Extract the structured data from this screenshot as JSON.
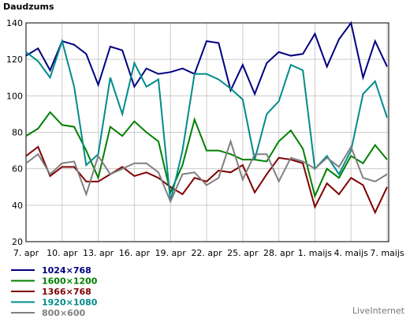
{
  "chart_data": {
    "type": "line",
    "title": "Daudzums",
    "categories": [
      "7. apr",
      null,
      null,
      "10. apr",
      null,
      null,
      "13. apr",
      null,
      null,
      "16. apr",
      null,
      null,
      "19. apr",
      null,
      null,
      "22. apr",
      null,
      null,
      "25. apr",
      null,
      null,
      "28. apr",
      null,
      null,
      "1. maijs",
      null,
      null,
      "4. maijs",
      null,
      null,
      "7. maijs"
    ],
    "ylim": [
      20,
      140
    ],
    "yticks": [
      20,
      40,
      60,
      80,
      100,
      120,
      140
    ],
    "grid": true,
    "series": [
      {
        "name": "1024×768",
        "color": "#000080",
        "values": [
          122,
          126,
          114,
          130,
          128,
          123,
          106,
          127,
          125,
          105,
          115,
          112,
          113,
          115,
          112,
          130,
          129,
          103,
          117,
          101,
          118,
          124,
          122,
          123,
          134,
          116,
          131,
          140,
          110,
          130,
          116
        ]
      },
      {
        "name": "1600×1200",
        "color": "#008000",
        "values": [
          78,
          82,
          91,
          84,
          83,
          70,
          55,
          83,
          78,
          86,
          80,
          75,
          47,
          62,
          87,
          70,
          70,
          68,
          65,
          65,
          64,
          75,
          81,
          71,
          45,
          60,
          55,
          67,
          63,
          73,
          65
        ]
      },
      {
        "name": "1366×768",
        "color": "#800000",
        "values": [
          67,
          72,
          56,
          61,
          61,
          53,
          53,
          57,
          61,
          56,
          58,
          55,
          50,
          46,
          55,
          53,
          59,
          58,
          62,
          47,
          57,
          66,
          65,
          63,
          39,
          52,
          46,
          55,
          51,
          36,
          50
        ]
      },
      {
        "name": "1920×1080",
        "color": "#008b8b",
        "values": [
          124,
          119,
          110,
          130,
          105,
          62,
          68,
          110,
          90,
          118,
          105,
          109,
          42,
          70,
          112,
          112,
          109,
          104,
          98,
          65,
          90,
          97,
          117,
          114,
          60,
          67,
          57,
          70,
          101,
          108,
          88
        ]
      },
      {
        "name": "800×600",
        "color": "#808080",
        "values": [
          63,
          68,
          57,
          63,
          64,
          46,
          67,
          57,
          60,
          63,
          63,
          58,
          42,
          57,
          58,
          51,
          55,
          75,
          54,
          68,
          68,
          53,
          66,
          64,
          60,
          66,
          61,
          72,
          55,
          53,
          57
        ]
      }
    ],
    "credit": "LiveInternet"
  }
}
